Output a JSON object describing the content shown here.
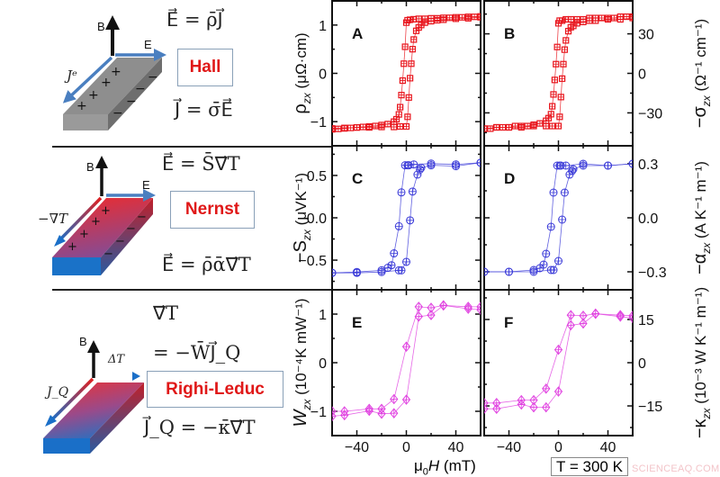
{
  "rows": [
    {
      "effect": "Hall",
      "eq_top": "E⃗ = ρ̄J⃗",
      "eq_bottom": "J⃗ = σ̄E⃗",
      "axis_up": "B",
      "axis_right": "E",
      "axis_diag": "Jᵉ"
    },
    {
      "effect": "Nernst",
      "eq_top": "E⃗ = S̄∇⃗T",
      "eq_bottom": "E⃗ = ρ̄ᾱ∇⃗T",
      "axis_up": "B",
      "axis_right": "E",
      "axis_diag": "−∇T"
    },
    {
      "effect": "Righi-Leduc",
      "eq_top": "∇⃗T",
      "eq_mid": "= −W̄J⃗_Q",
      "eq_bottom": "J⃗_Q = −κ̄∇⃗T",
      "axis_up": "B",
      "axis_right": "ΔT",
      "axis_diag": "J_Q"
    }
  ],
  "x_axis_label": {
    "symbol": "μ",
    "sub": "0",
    "var": "H",
    "unit": " (mT)"
  },
  "temperature_label": "T = 300 K",
  "watermark": "SCIENCEAQ.COM",
  "colors": {
    "hall": "#e8141c",
    "nernst": "#3a3ad8",
    "righi_leduc": "#e040e0",
    "effect_text": "#e01818"
  },
  "chart_data": [
    {
      "panel": "A",
      "type": "line",
      "marker": "square-plus",
      "color": "#e8141c",
      "ylabel": {
        "symbol": "ρ",
        "sub": "zx",
        "unit": " (μΩ·cm)"
      },
      "yaxis_side": "left",
      "xlim": [
        -60,
        60
      ],
      "xticks": [
        -40,
        0,
        40
      ],
      "ylim": [
        -1.5,
        1.5
      ],
      "yticks": [
        -1,
        0,
        1
      ],
      "series": [
        {
          "x": [
            -60,
            -55,
            -50,
            -45,
            -40,
            -35,
            -30,
            -25,
            -20,
            -15,
            -10,
            -8,
            -6,
            -5,
            -4,
            -3,
            -2,
            -1,
            0,
            1,
            3,
            6,
            10,
            15,
            20,
            25,
            30,
            35,
            40,
            45,
            50,
            55,
            60
          ],
          "y": [
            -1.16,
            -1.15,
            -1.14,
            -1.13,
            -1.12,
            -1.11,
            -1.1,
            -1.09,
            -1.07,
            -1.05,
            -1.0,
            -0.95,
            -0.85,
            -0.7,
            -0.45,
            -0.15,
            0.2,
            0.55,
            1.05,
            1.1,
            1.11,
            1.12,
            1.13,
            1.13,
            1.14,
            1.14,
            1.15,
            1.15,
            1.16,
            1.16,
            1.17,
            1.17,
            1.18
          ]
        },
        {
          "x": [
            -60,
            -50,
            -40,
            -30,
            -20,
            -10,
            -5,
            0,
            1,
            2,
            3,
            4,
            5,
            6,
            8,
            10,
            12,
            15,
            20,
            25,
            30,
            40,
            50,
            60
          ],
          "y": [
            -1.14,
            -1.13,
            -1.12,
            -1.12,
            -1.11,
            -1.11,
            -1.1,
            -1.1,
            -0.9,
            -0.5,
            -0.1,
            0.2,
            0.5,
            0.7,
            0.88,
            0.95,
            1.0,
            1.05,
            1.08,
            1.1,
            1.11,
            1.13,
            1.14,
            1.16
          ]
        }
      ]
    },
    {
      "panel": "B",
      "type": "line",
      "marker": "square-plus",
      "color": "#e8141c",
      "ylabel": {
        "symbol": "−σ",
        "sub": "zx",
        "unit": " (Ω⁻¹ cm⁻¹)"
      },
      "yaxis_side": "right",
      "xlim": [
        -60,
        60
      ],
      "xticks": [
        -40,
        0,
        40
      ],
      "ylim": [
        -55,
        55
      ],
      "yticks": [
        -30,
        0,
        30
      ],
      "series": [
        {
          "x": [
            -60,
            -55,
            -50,
            -45,
            -40,
            -35,
            -30,
            -25,
            -20,
            -15,
            -10,
            -8,
            -6,
            -5,
            -4,
            -3,
            -2,
            -1,
            0,
            1,
            3,
            6,
            10,
            15,
            20,
            25,
            30,
            35,
            40,
            45,
            50,
            55,
            60
          ],
          "y": [
            -42,
            -42,
            -41,
            -41,
            -41,
            -40,
            -40,
            -40,
            -39,
            -38,
            -36,
            -34,
            -31,
            -25,
            -16,
            -5,
            7,
            20,
            38,
            40,
            40,
            41,
            41,
            41,
            41,
            42,
            42,
            42,
            42,
            42,
            43,
            43,
            43
          ]
        },
        {
          "x": [
            -60,
            -50,
            -40,
            -30,
            -20,
            -10,
            -5,
            0,
            1,
            2,
            3,
            4,
            5,
            6,
            8,
            10,
            12,
            15,
            20,
            25,
            30,
            40,
            50,
            60
          ],
          "y": [
            -42,
            -41,
            -41,
            -41,
            -40,
            -40,
            -40,
            -40,
            -33,
            -18,
            -4,
            7,
            18,
            25,
            32,
            35,
            36,
            38,
            39,
            40,
            40,
            41,
            41,
            42
          ]
        }
      ]
    },
    {
      "panel": "C",
      "type": "line",
      "marker": "circle-plus",
      "color": "#3a3ad8",
      "ylabel": {
        "symbol": "−S",
        "sub": "zx",
        "unit": " (μVK⁻¹)"
      },
      "yaxis_side": "left",
      "xlim": [
        -60,
        60
      ],
      "xticks": [
        -40,
        0,
        40
      ],
      "ylim": [
        -0.85,
        0.85
      ],
      "yticks": [
        -0.5,
        0.0,
        0.5
      ],
      "ytick_format": "1",
      "series": [
        {
          "x": [
            -60,
            -40,
            -20,
            -15,
            -12,
            -10,
            -6,
            -4,
            -1,
            1,
            2,
            6,
            20,
            40,
            60
          ],
          "y": [
            -0.65,
            -0.64,
            -0.62,
            -0.59,
            -0.56,
            -0.42,
            -0.1,
            0.3,
            0.62,
            0.62,
            0.62,
            0.63,
            0.64,
            0.63,
            0.65
          ]
        },
        {
          "x": [
            -60,
            -40,
            -20,
            -6,
            -4,
            0,
            3,
            5,
            9,
            11,
            12,
            20,
            40,
            60
          ],
          "y": [
            -0.65,
            -0.65,
            -0.64,
            -0.62,
            -0.62,
            -0.52,
            -0.03,
            0.31,
            0.51,
            0.57,
            0.59,
            0.62,
            0.61,
            0.65
          ]
        }
      ]
    },
    {
      "panel": "D",
      "type": "line",
      "marker": "circle-plus",
      "color": "#3a3ad8",
      "ylabel": {
        "symbol": "−α",
        "sub": "zx",
        "unit": " (A K⁻¹ m⁻¹)"
      },
      "yaxis_side": "right",
      "xlim": [
        -60,
        60
      ],
      "xticks": [
        -40,
        0,
        40
      ],
      "ylim": [
        -0.4,
        0.4
      ],
      "yticks": [
        -0.3,
        0.0,
        0.3
      ],
      "ytick_format": "1",
      "series": [
        {
          "x": [
            -60,
            -40,
            -20,
            -15,
            -12,
            -10,
            -6,
            -4,
            -1,
            1,
            2,
            6,
            20,
            40,
            60
          ],
          "y": [
            -0.3,
            -0.3,
            -0.29,
            -0.28,
            -0.26,
            -0.2,
            -0.05,
            0.14,
            0.29,
            0.29,
            0.29,
            0.29,
            0.3,
            0.29,
            0.3
          ]
        },
        {
          "x": [
            -60,
            -40,
            -20,
            -6,
            -4,
            0,
            3,
            5,
            9,
            11,
            12,
            20,
            40,
            60
          ],
          "y": [
            -0.3,
            -0.3,
            -0.3,
            -0.29,
            -0.29,
            -0.24,
            -0.01,
            0.14,
            0.24,
            0.26,
            0.27,
            0.29,
            0.29,
            0.3
          ]
        }
      ]
    },
    {
      "panel": "E",
      "type": "line",
      "marker": "diamond-plus",
      "color": "#e040e0",
      "ylabel": {
        "symbol": "W",
        "sub": "zx",
        "unit": " (10⁻⁴K mW⁻¹)"
      },
      "yaxis_side": "left",
      "xlim": [
        -60,
        60
      ],
      "xticks": [
        -40,
        0,
        40
      ],
      "ylim": [
        -1.5,
        1.5
      ],
      "yticks": [
        -1,
        0,
        1
      ],
      "series": [
        {
          "x": [
            -60,
            -50,
            -30,
            -20,
            -10,
            0,
            10,
            20,
            30,
            50,
            60
          ],
          "y": [
            -1.0,
            -1.0,
            -0.95,
            -0.95,
            -0.75,
            0.33,
            1.15,
            1.13,
            1.18,
            1.15,
            1.15
          ]
        },
        {
          "x": [
            -60,
            -50,
            -30,
            -20,
            -10,
            0,
            10,
            20,
            30,
            50,
            60
          ],
          "y": [
            -1.1,
            -1.08,
            -0.99,
            -1.05,
            -1.04,
            -0.76,
            0.95,
            0.98,
            1.18,
            1.11,
            1.09
          ]
        }
      ]
    },
    {
      "panel": "F",
      "type": "line",
      "marker": "diamond-plus",
      "color": "#e040e0",
      "ylabel": {
        "symbol": "−κ",
        "sub": "zx",
        "unit": " (10⁻³ W K⁻¹ m⁻¹)"
      },
      "yaxis_side": "right",
      "xlim": [
        -60,
        60
      ],
      "xticks": [
        -40,
        0,
        40
      ],
      "ylim": [
        -25.3,
        25.3
      ],
      "yticks": [
        -15,
        0,
        15
      ],
      "series": [
        {
          "x": [
            -60,
            -50,
            -30,
            -20,
            -10,
            0,
            10,
            20,
            30,
            50,
            60
          ],
          "y": [
            -14,
            -14,
            -13,
            -13,
            -9,
            4.5,
            16.5,
            16.3,
            17,
            16.5,
            16.3
          ]
        },
        {
          "x": [
            -60,
            -50,
            -30,
            -20,
            -10,
            0,
            10,
            20,
            30,
            50,
            60
          ],
          "y": [
            -16,
            -16,
            -14.5,
            -15.5,
            -15.5,
            -10,
            13,
            13.6,
            17,
            16,
            15.5
          ]
        }
      ]
    }
  ]
}
